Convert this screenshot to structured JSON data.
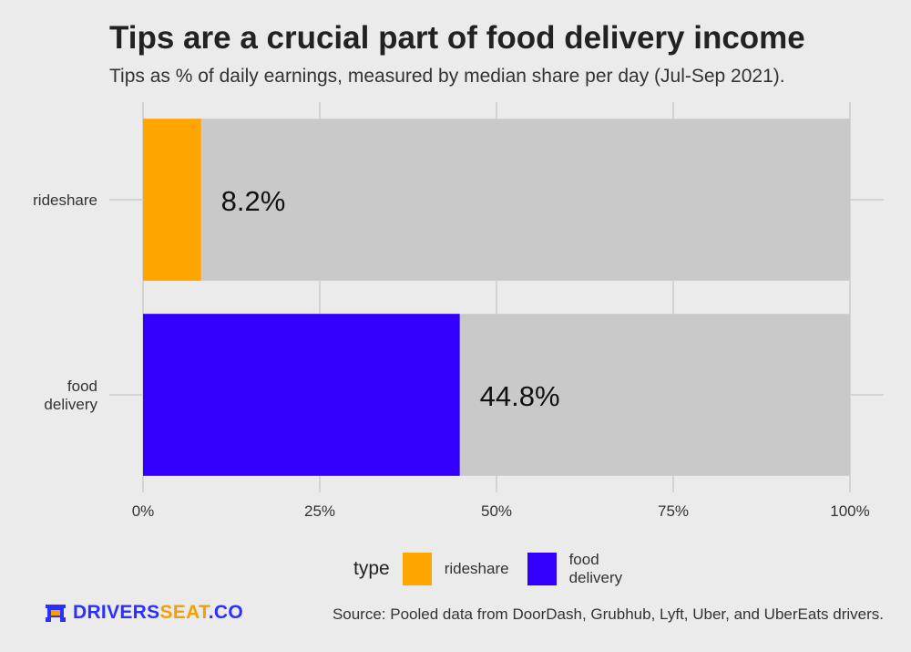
{
  "title": "Tips are a crucial part of food delivery income",
  "subtitle": "Tips as % of daily earnings, measured by median share per day (Jul-Sep 2021).",
  "source": "Source: Pooled data from DoorDash, Grubhub, Lyft, Uber, and UberEats drivers.",
  "brand": {
    "part1": "DRIVERS",
    "part2": "SEAT",
    "part3": ".CO"
  },
  "legend": {
    "title": "type",
    "items": [
      {
        "label": "rideshare",
        "color": "#ffa500"
      },
      {
        "label": "food delivery",
        "color": "#3300ff"
      }
    ]
  },
  "chart_data": {
    "type": "bar",
    "orientation": "horizontal",
    "stacked_to": 100,
    "categories": [
      "rideshare",
      "food delivery"
    ],
    "category_labels": [
      [
        "rideshare"
      ],
      [
        "food",
        "delivery"
      ]
    ],
    "values": [
      8.2,
      44.8
    ],
    "data_labels": [
      "8.2%",
      "44.8%"
    ],
    "colors": [
      "#ffa500",
      "#3300ff"
    ],
    "remainder_color": "#c9c9c9",
    "xlim": [
      0,
      100
    ],
    "xticks": [
      0,
      25,
      50,
      75,
      100
    ],
    "xtick_labels": [
      "0%",
      "25%",
      "50%",
      "75%",
      "100%"
    ],
    "xlabel": "",
    "ylabel": "",
    "grid": true,
    "legend_position": "bottom"
  }
}
